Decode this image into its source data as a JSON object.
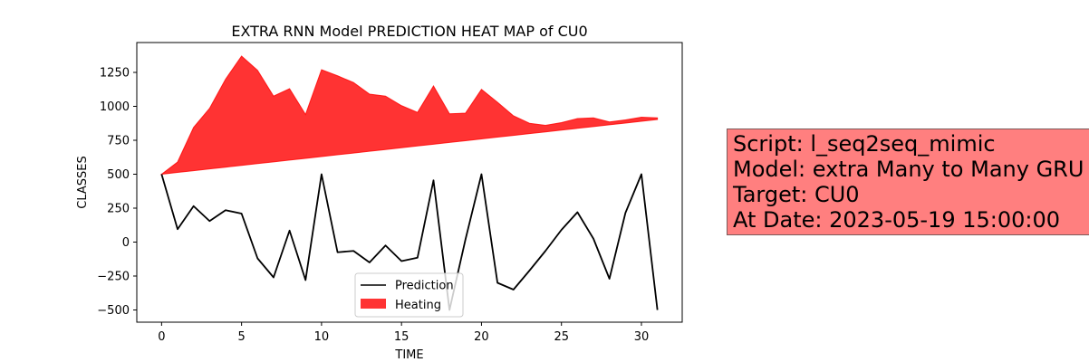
{
  "chart_data": {
    "type": "line",
    "title": "EXTRA RNN Model PREDICTION HEAT MAP of CU0",
    "xlabel": "TIME",
    "ylabel": "CLASSES",
    "xlim": [
      -1.55,
      32.55
    ],
    "ylim": [
      -590,
      1470
    ],
    "xticks": [
      0,
      5,
      10,
      15,
      20,
      25,
      30
    ],
    "yticks": [
      -500,
      -250,
      0,
      250,
      500,
      750,
      1000,
      1250
    ],
    "legend_position": "lower-center",
    "series": [
      {
        "name": "Prediction",
        "type": "line",
        "color": "#000000",
        "x": [
          0,
          1,
          2,
          3,
          4,
          5,
          6,
          7,
          8,
          9,
          10,
          11,
          12,
          13,
          14,
          15,
          16,
          17,
          18,
          19,
          20,
          21,
          22,
          23,
          24,
          25,
          26,
          27,
          28,
          29,
          30,
          31
        ],
        "y": [
          500,
          95,
          265,
          155,
          235,
          210,
          -120,
          -260,
          85,
          -280,
          500,
          -75,
          -65,
          -150,
          -25,
          -140,
          -115,
          455,
          -500,
          20,
          500,
          -300,
          -350,
          -210,
          -65,
          90,
          220,
          25,
          -270,
          215,
          500,
          -500
        ]
      },
      {
        "name": "Heating",
        "type": "fill_between",
        "color": "#ff0000",
        "opacity": 0.8,
        "x": [
          0,
          1,
          2,
          3,
          4,
          5,
          6,
          7,
          8,
          9,
          10,
          11,
          12,
          13,
          14,
          15,
          16,
          17,
          18,
          19,
          20,
          21,
          22,
          23,
          24,
          25,
          26,
          27,
          28,
          29,
          30,
          31
        ],
        "lower": [
          500,
          513,
          526,
          539,
          552,
          565,
          578,
          591,
          604,
          617,
          630,
          643,
          656,
          669,
          682,
          695,
          708,
          721,
          734,
          747,
          760,
          773,
          786,
          799,
          812,
          825,
          838,
          851,
          864,
          877,
          890,
          903
        ],
        "upper": [
          500,
          590,
          845,
          985,
          1200,
          1370,
          1265,
          1075,
          1130,
          940,
          1270,
          1225,
          1175,
          1090,
          1075,
          1005,
          955,
          1150,
          945,
          950,
          1125,
          1030,
          930,
          875,
          860,
          880,
          910,
          915,
          885,
          900,
          920,
          915
        ]
      }
    ]
  },
  "info_box": {
    "lines": [
      "Script: l_seq2seq_mimic",
      "Model: extra Many to Many GRU",
      "Target: CU0",
      "At Date: 2023-05-19 15:00:00"
    ],
    "background": "#ff7f7f"
  }
}
